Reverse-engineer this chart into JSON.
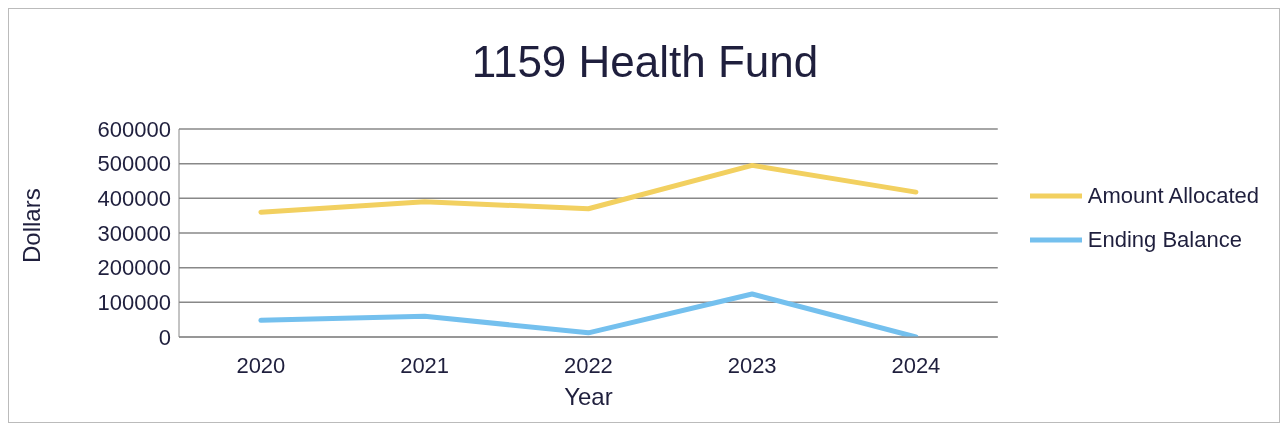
{
  "chart_data": {
    "type": "line",
    "title": "1159 Health Fund",
    "xlabel": "Year",
    "ylabel": "Dollars",
    "categories": [
      "2020",
      "2021",
      "2022",
      "2023",
      "2024"
    ],
    "series": [
      {
        "name": "Amount Allocated",
        "color": "#f2d060",
        "values": [
          360000,
          390000,
          370000,
          495000,
          418000
        ]
      },
      {
        "name": "Ending Balance",
        "color": "#74c0ee",
        "values": [
          48000,
          60000,
          12000,
          124000,
          0
        ]
      }
    ],
    "ylim": [
      0,
      600000
    ],
    "yticks": [
      0,
      100000,
      200000,
      300000,
      400000,
      500000,
      600000
    ],
    "grid": "y",
    "legend": "right",
    "marker": "none",
    "line_style": "solid"
  }
}
